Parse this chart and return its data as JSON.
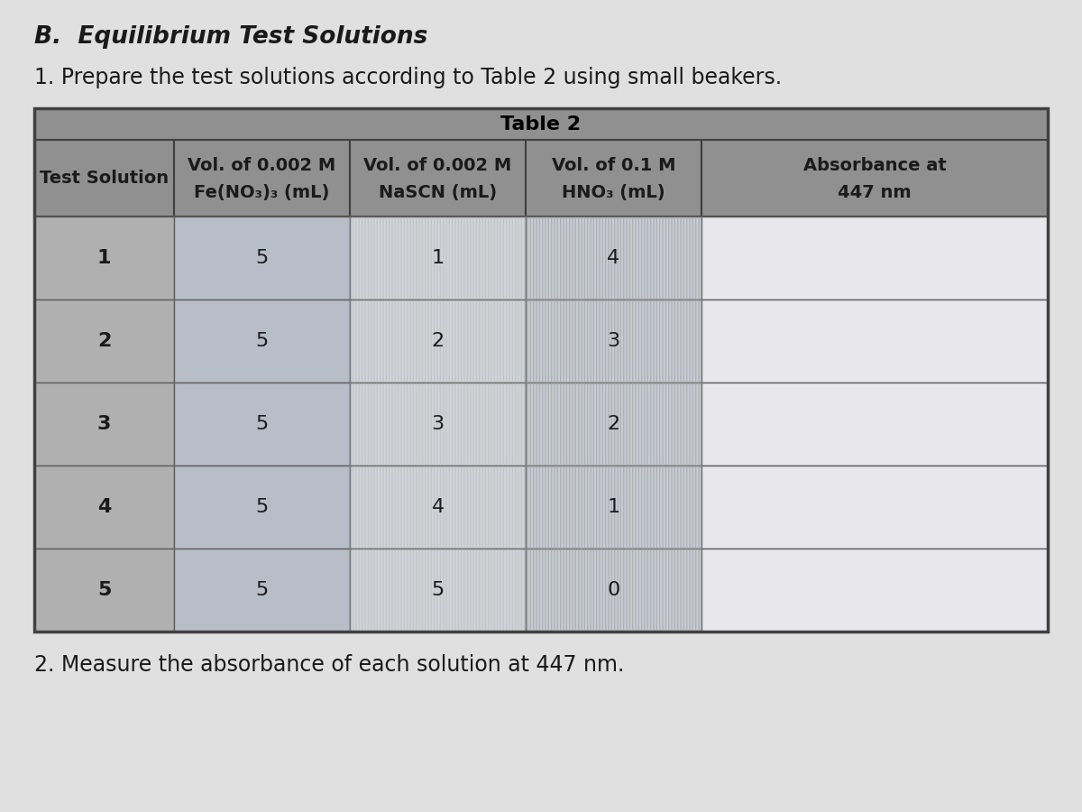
{
  "title_italic": "B.  Equilibrium Test Solutions",
  "subtitle": "1. Prepare the test solutions according to Table 2 using small beakers.",
  "table_title": "Table 2",
  "col_headers_line1": [
    "Test Solution",
    "Vol. of 0.002 M",
    "Vol. of 0.002 M",
    "Vol. of 0.1 M",
    "Absorbance at"
  ],
  "col_headers_line2": [
    "",
    "Fe(NO₃)₃ (mL)",
    "NaSCN (mL)",
    "HNO₃ (mL)",
    "447 nm"
  ],
  "rows": [
    [
      "1",
      "5",
      "1",
      "4",
      ""
    ],
    [
      "2",
      "5",
      "2",
      "3",
      ""
    ],
    [
      "3",
      "5",
      "3",
      "2",
      ""
    ],
    [
      "4",
      "5",
      "4",
      "1",
      ""
    ],
    [
      "5",
      "5",
      "5",
      "0",
      ""
    ]
  ],
  "bg_color": "#c8c8c8",
  "page_bg": "#e0e0e0",
  "table_title_bg": "#909090",
  "header_bg": "#909090",
  "col0_data_bg": "#b0b0b0",
  "col1_data_bg": "#b8bec8",
  "col2_data_bg": "#d0d4d8",
  "col3_data_bg": "#c8ccd4",
  "col4_data_bg": "#e8e8ec",
  "table_border_color": "#404040",
  "inner_border_color": "#606060",
  "footer_text": "2. Measure the absorbance of each solution at 447 nm.",
  "title_color": "#1a1a1a",
  "header_text_color": "#1a1a1a",
  "data_text_color": "#1a1a1a",
  "title_fontsize": 19,
  "subtitle_fontsize": 17,
  "table_title_fontsize": 16,
  "header_fontsize": 14,
  "data_fontsize": 16
}
